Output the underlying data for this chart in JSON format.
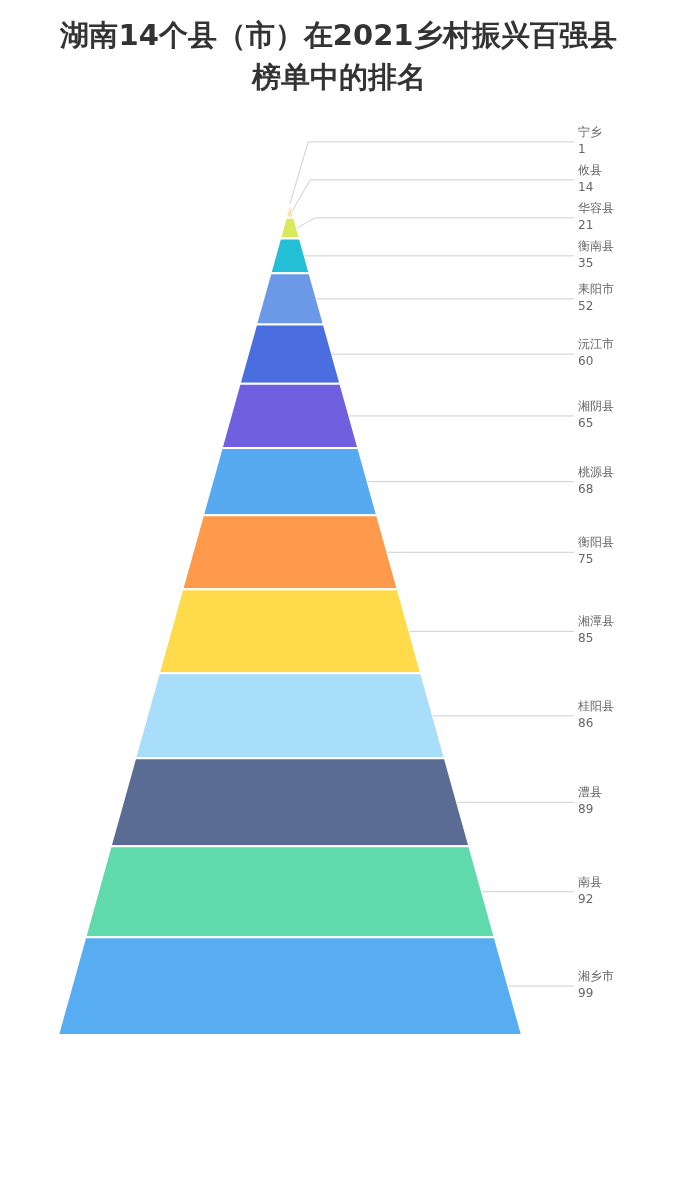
{
  "chart_data": {
    "type": "other",
    "title": "湖南14个县（市）在2021乡村振兴百强县榜单中的排名",
    "categories": [
      "宁乡",
      "攸县",
      "华容县",
      "衡南县",
      "耒阳市",
      "沅江市",
      "湘阴县",
      "桃源县",
      "衡阳县",
      "湘潭县",
      "桂阳县",
      "澧县",
      "南县",
      "湘乡市"
    ],
    "data_labels": true,
    "values": [
      1,
      14,
      21,
      35,
      52,
      60,
      65,
      68,
      75,
      85,
      86,
      89,
      92,
      99
    ],
    "colors": [
      "#a3245e",
      "#fbe3a4",
      "#d8ea5c",
      "#22bfd6",
      "#6c98e8",
      "#4a6ee0",
      "#7060e0",
      "#58aaf0",
      "#ff9a4c",
      "#ffdb4c",
      "#a8defa",
      "#5a6c94",
      "#60d9ac",
      "#58acf2"
    ]
  }
}
